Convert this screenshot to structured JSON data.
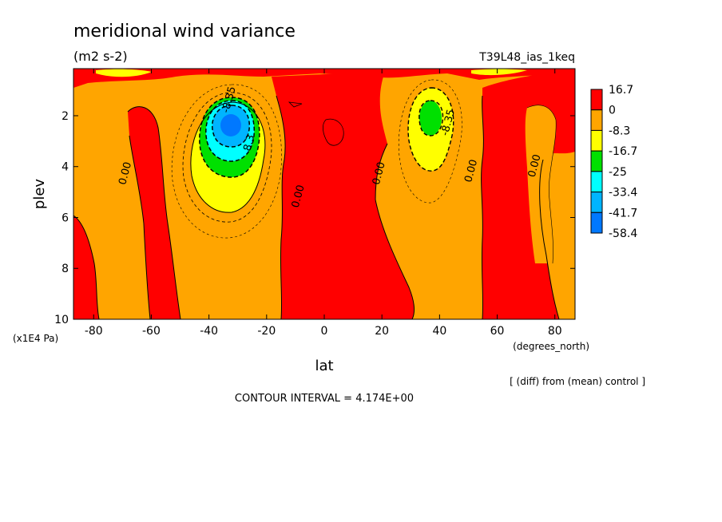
{
  "chart_data": {
    "type": "heatmap",
    "title": "meridional wind variance",
    "units": "(m2 s-2)",
    "run_label": "T39L48_ias_1keq",
    "xlabel": "lat",
    "x_units": "(degrees_north)",
    "ylabel": "plev",
    "y_units": "(x1E4 Pa)",
    "xlim": [
      -87,
      87
    ],
    "ylim": [
      10,
      0.15
    ],
    "x_ticks": [
      -80,
      -60,
      -40,
      -20,
      0,
      20,
      40,
      60,
      80
    ],
    "y_ticks": [
      2,
      4,
      6,
      8,
      10
    ],
    "colorbar": {
      "labels": [
        "16.7",
        "0",
        "-8.3",
        "-16.7",
        "-25",
        "-33.4",
        "-41.7",
        "-58.4"
      ],
      "colors": [
        "#ff0000",
        "#ffa500",
        "#ffff00",
        "#00e000",
        "#00ffff",
        "#00b4ff",
        "#0078ff"
      ]
    },
    "contour_labels": [
      {
        "text": "-8.35",
        "x": -32,
        "y": 1.4
      },
      {
        "text": "-8.35",
        "x": 44,
        "y": 2.3
      },
      {
        "text": "0.00",
        "x": -68,
        "y": 4.3
      },
      {
        "text": "0.00",
        "x": -8,
        "y": 5.2
      },
      {
        "text": "0.00",
        "x": 20,
        "y": 4.3
      },
      {
        "text": "0.00",
        "x": 52,
        "y": 4.2
      },
      {
        "text": "0.00",
        "x": 74,
        "y": 4.0
      },
      {
        "text": "8.3",
        "x": -25,
        "y": 3.1
      }
    ],
    "regions": {
      "minimum_south": {
        "lat": -33,
        "plev": 2.35,
        "value": -58.4
      },
      "minimum_north": {
        "lat": 37,
        "plev": 2.1,
        "value": -25
      }
    },
    "annotation": "[ (diff) from (mean) control ]",
    "contour_interval_text": "CONTOUR INTERVAL = 4.174E+00"
  }
}
